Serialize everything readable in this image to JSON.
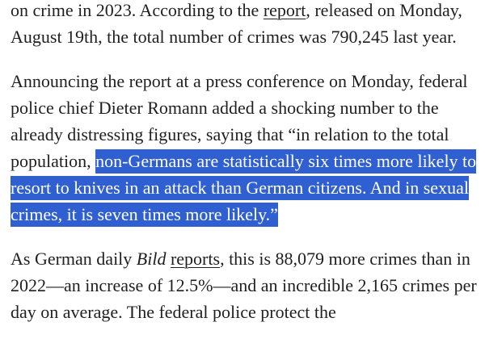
{
  "article": {
    "p1": {
      "before_link": "on crime in 2023. According to the ",
      "link": "report",
      "after_link": ", released on Monday, August 19th, the total number of crimes was 790,245 last year."
    },
    "p2": {
      "before_highlight": "Announcing the report at a press conference on Monday, federal police chief Dieter Romann added a shocking number to the already distressing figures, saying that “in relation to the total population, ",
      "highlight": "non-Germans are statistically six times more likely to resort to knives in an attack than German citizens. And in sexual crimes, it is seven times more likely.”"
    },
    "p3": {
      "before_em": "As German daily ",
      "em": "Bild",
      "link": "reports",
      "after_link": ", this is 88,079 more crimes than in 2022—an increase of 12.5%—and an incredible 2,165 crimes per day on average. The federal police protect the"
    }
  },
  "colors": {
    "text": "#1f1f1f",
    "selection": "#2f5fd0",
    "background": "#ffffff"
  }
}
